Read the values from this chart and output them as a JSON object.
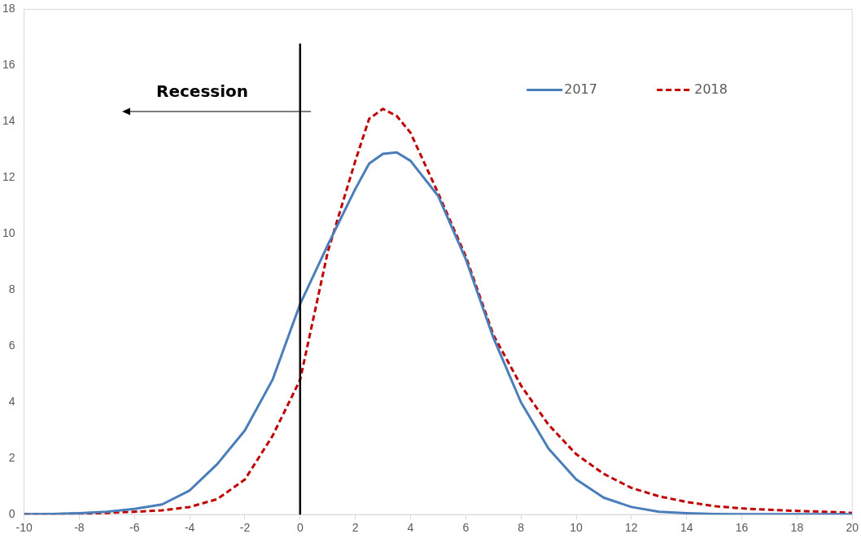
{
  "chart_data": {
    "type": "line",
    "x": [
      -10,
      -9,
      -8,
      -7,
      -6,
      -5,
      -4,
      -3,
      -2,
      -1,
      0,
      1,
      2,
      2.5,
      3,
      3.5,
      4,
      5,
      6,
      7,
      8,
      9,
      10,
      11,
      12,
      13,
      14,
      15,
      16,
      17,
      18,
      19,
      20
    ],
    "series": [
      {
        "name": "2017",
        "color": "#4a7ebb",
        "line_style": "solid",
        "values": [
          0.01,
          0.02,
          0.05,
          0.1,
          0.2,
          0.36,
          0.86,
          1.8,
          3.0,
          4.8,
          7.5,
          9.6,
          11.6,
          12.5,
          12.85,
          12.9,
          12.6,
          11.35,
          9.1,
          6.3,
          4.0,
          2.35,
          1.25,
          0.6,
          0.27,
          0.1,
          0.05,
          0.02,
          0.01,
          0.01,
          0.01,
          0.01,
          0.01
        ]
      },
      {
        "name": "2018",
        "color": "#c00000",
        "line_style": "dashed",
        "values": [
          0.01,
          0.02,
          0.03,
          0.06,
          0.1,
          0.15,
          0.27,
          0.55,
          1.25,
          2.8,
          4.8,
          9.35,
          12.6,
          14.1,
          14.45,
          14.2,
          13.6,
          11.45,
          9.2,
          6.4,
          4.6,
          3.2,
          2.15,
          1.45,
          0.95,
          0.65,
          0.45,
          0.3,
          0.22,
          0.17,
          0.13,
          0.1,
          0.06
        ]
      }
    ],
    "xlim": [
      -10,
      20
    ],
    "xticks": [
      -10,
      -8,
      -6,
      -4,
      -2,
      0,
      2,
      4,
      6,
      8,
      10,
      12,
      14,
      16,
      18,
      20
    ],
    "ylim": [
      0,
      18
    ],
    "yticks": [
      0,
      2,
      4,
      6,
      8,
      10,
      12,
      14,
      16,
      18
    ],
    "grid": false,
    "legend": "top right",
    "marker": "none",
    "ref_lines": [
      {
        "axis": "x",
        "value": 0,
        "color": "#000000"
      }
    ],
    "annotations": [
      "Recession"
    ]
  }
}
